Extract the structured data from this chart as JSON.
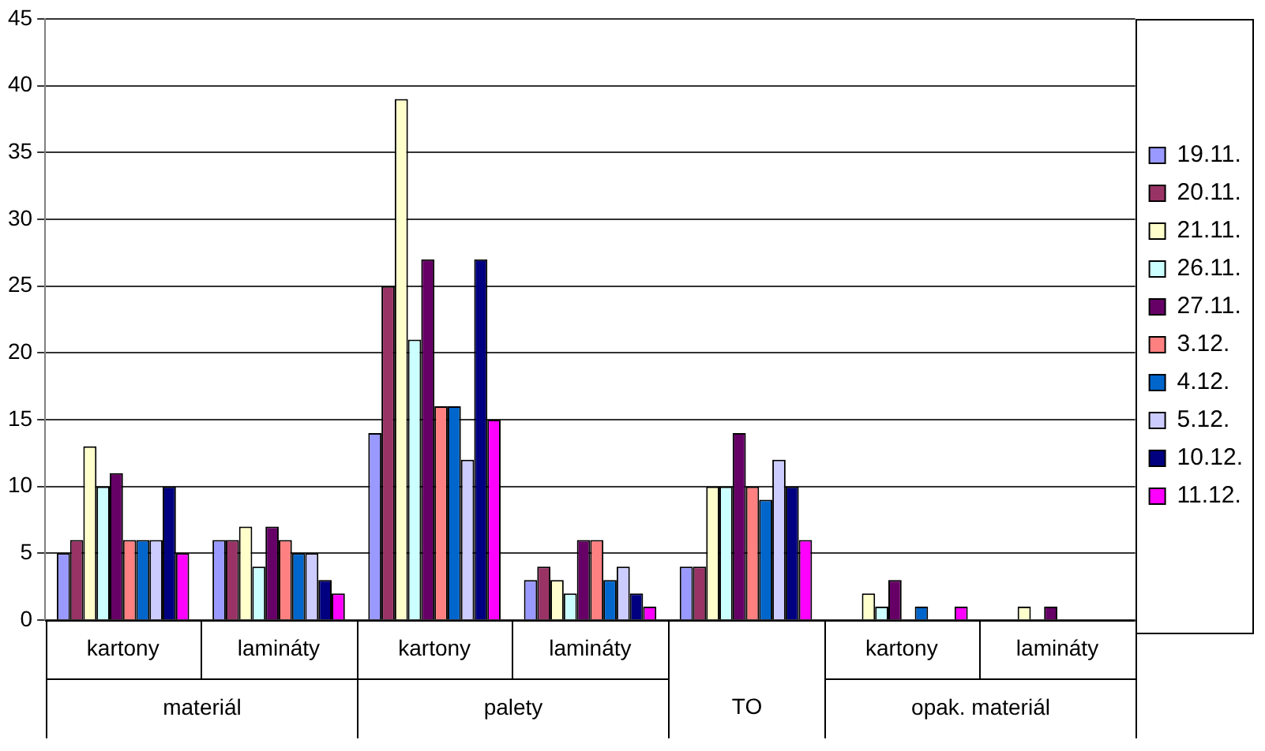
{
  "chart_data": {
    "type": "bar",
    "categories": [
      "kartony",
      "lamináty",
      "kartony",
      "lamináty",
      null,
      "kartony",
      "lamináty"
    ],
    "annotations": [
      "materiál",
      "palety",
      "TO",
      "opak. materiál"
    ],
    "series": [
      {
        "name": "19.11.",
        "color": "#9999ff",
        "values": [
          5,
          6,
          14,
          3,
          4,
          0,
          0
        ]
      },
      {
        "name": "20.11.",
        "color": "#993366",
        "values": [
          6,
          6,
          25,
          4,
          4,
          0,
          0
        ]
      },
      {
        "name": "21.11.",
        "color": "#ffffcc",
        "values": [
          13,
          7,
          39,
          3,
          10,
          2,
          1
        ]
      },
      {
        "name": "26.11.",
        "color": "#ccffff",
        "values": [
          10,
          4,
          21,
          2,
          10,
          1,
          0
        ]
      },
      {
        "name": "27.11.",
        "color": "#660066",
        "values": [
          11,
          7,
          27,
          6,
          14,
          3,
          1
        ]
      },
      {
        "name": "3.12.",
        "color": "#ff8080",
        "values": [
          6,
          6,
          16,
          6,
          10,
          0,
          0
        ]
      },
      {
        "name": "4.12.",
        "color": "#0066cc",
        "values": [
          6,
          5,
          16,
          3,
          9,
          1,
          0
        ]
      },
      {
        "name": "5.12.",
        "color": "#ccccff",
        "values": [
          6,
          5,
          12,
          4,
          12,
          0,
          0
        ]
      },
      {
        "name": "10.12.",
        "color": "#000080",
        "values": [
          10,
          3,
          27,
          2,
          10,
          0,
          0
        ]
      },
      {
        "name": "11.12.",
        "color": "#ff00ff",
        "values": [
          5,
          2,
          15,
          1,
          6,
          1,
          0
        ]
      }
    ],
    "ylim": [
      0,
      45
    ],
    "yticks": [
      0,
      5,
      10,
      15,
      20,
      25,
      30,
      35,
      40,
      45
    ],
    "grid": "y",
    "legend": "right"
  }
}
